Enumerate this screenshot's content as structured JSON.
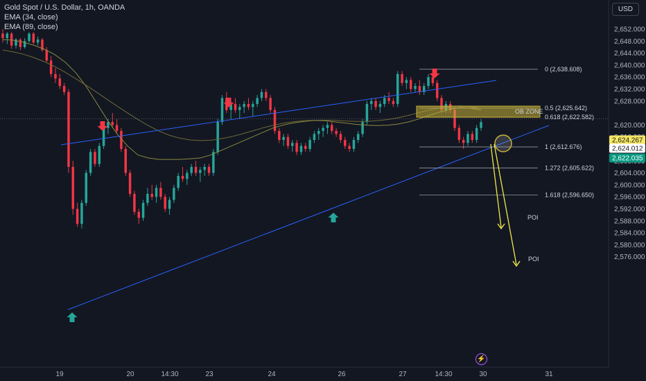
{
  "header": {
    "title": "Gold Spot / U.S. Dollar, 1h, OANDA",
    "indicators": [
      "EMA (34, close)",
      "EMA (89, close)"
    ],
    "currency_button": "USD"
  },
  "colors": {
    "background": "#131722",
    "bull": "#26a69a",
    "bear": "#f23645",
    "ema34": "#8a8a3e",
    "ema89": "#6f6a38",
    "trendline": "#2962ff",
    "projection": "#f3e94b",
    "ob_zone": "#c9b236"
  },
  "chart_data": {
    "type": "candlestick",
    "symbol": "XAUUSD",
    "timeframe": "1h",
    "ylim": [
      2574,
      2654
    ],
    "y_ticks": [
      "2,652.000",
      "2,648.000",
      "2,644.000",
      "2,640.000",
      "2,636.000",
      "2,632.000",
      "2,628.000",
      "2,620.000",
      "2,616.000",
      "2,612.000",
      "2,608.000",
      "2,604.000",
      "2,600.000",
      "2,596.000",
      "2,592.000",
      "2,588.000",
      "2,584.000",
      "2,580.000",
      "2,576.000"
    ],
    "x_ticks": [
      "19",
      "20",
      "14:30",
      "23",
      "24",
      "26",
      "27",
      "14:30",
      "30",
      "31"
    ],
    "price_labels": [
      {
        "value": "2,624.267",
        "style": "yellow"
      },
      {
        "value": "2,624.012",
        "style": "white"
      },
      {
        "value": "2,622.035",
        "style": "green"
      }
    ],
    "fibonacci": [
      {
        "label": "0 (2,638.608)",
        "price": 2638.608
      },
      {
        "label": "0.5 (2,625.642)",
        "price": 2625.642
      },
      {
        "label": "0.618 (2,622.582)",
        "price": 2622.582
      },
      {
        "label": "1 (2,612.676)",
        "price": 2612.676
      },
      {
        "label": "1.272 (2,605.622)",
        "price": 2605.622
      },
      {
        "label": "1.618 (2,596.650)",
        "price": 2596.65
      }
    ],
    "zone_label": "OB ZONE",
    "zone_range": [
      2622.6,
      2626.3
    ],
    "poi_labels": [
      "POI",
      "POI"
    ],
    "candles": [
      [
        2650.5,
        2652,
        2647.5,
        2649
      ],
      [
        2649,
        2651,
        2647,
        2650.5
      ],
      [
        2650.5,
        2651,
        2645.5,
        2646.5
      ],
      [
        2646.5,
        2649,
        2645.5,
        2648.5
      ],
      [
        2648.5,
        2649,
        2645,
        2646
      ],
      [
        2646,
        2649,
        2645.5,
        2648
      ],
      [
        2648,
        2651,
        2647.5,
        2650.5
      ],
      [
        2650.5,
        2651,
        2647,
        2647.5
      ],
      [
        2647.5,
        2649.5,
        2646.5,
        2648.5
      ],
      [
        2648.5,
        2649,
        2644.5,
        2645
      ],
      [
        2645,
        2646,
        2641,
        2641.5
      ],
      [
        2641.5,
        2643,
        2636,
        2637
      ],
      [
        2637,
        2639,
        2634,
        2635.5
      ],
      [
        2635.5,
        2637,
        2632,
        2633
      ],
      [
        2633,
        2634,
        2630,
        2631
      ],
      [
        2631,
        2632,
        2604,
        2606
      ],
      [
        2606,
        2608,
        2590,
        2592
      ],
      [
        2592,
        2594,
        2586,
        2587
      ],
      [
        2587,
        2595,
        2585.5,
        2594
      ],
      [
        2594,
        2605,
        2593,
        2604
      ],
      [
        2604,
        2612,
        2603,
        2611
      ],
      [
        2611,
        2612,
        2606,
        2607
      ],
      [
        2607,
        2614,
        2606,
        2613
      ],
      [
        2613,
        2620,
        2612,
        2619
      ],
      [
        2619,
        2622,
        2617,
        2621
      ],
      [
        2621,
        2624,
        2619,
        2620
      ],
      [
        2620,
        2622,
        2617,
        2618
      ],
      [
        2618,
        2619,
        2611,
        2612
      ],
      [
        2612,
        2613,
        2603,
        2604
      ],
      [
        2604,
        2605,
        2596,
        2597
      ],
      [
        2597,
        2598,
        2590,
        2591
      ],
      [
        2591,
        2592,
        2587,
        2589
      ],
      [
        2589,
        2595,
        2588,
        2594
      ],
      [
        2594,
        2599,
        2593,
        2597
      ],
      [
        2597,
        2600,
        2595,
        2596
      ],
      [
        2596,
        2600,
        2594,
        2599
      ],
      [
        2599,
        2601,
        2595,
        2596
      ],
      [
        2596,
        2597,
        2591,
        2592
      ],
      [
        2592,
        2596,
        2590,
        2595
      ],
      [
        2595,
        2600,
        2594,
        2599
      ],
      [
        2599,
        2604,
        2598,
        2603
      ],
      [
        2603,
        2606,
        2601,
        2602
      ],
      [
        2602,
        2605,
        2600,
        2604
      ],
      [
        2604,
        2607,
        2603,
        2606
      ],
      [
        2606,
        2608,
        2603,
        2604
      ],
      [
        2604,
        2606,
        2601,
        2605
      ],
      [
        2605,
        2607,
        2603,
        2606
      ],
      [
        2606,
        2607,
        2603,
        2604
      ],
      [
        2604,
        2612,
        2603,
        2611
      ],
      [
        2611,
        2622,
        2610,
        2621
      ],
      [
        2621,
        2630,
        2620,
        2629
      ],
      [
        2629,
        2631,
        2624,
        2625
      ],
      [
        2625,
        2628,
        2622,
        2627
      ],
      [
        2627,
        2629,
        2624,
        2625
      ],
      [
        2625,
        2627,
        2622,
        2626
      ],
      [
        2626,
        2628,
        2624,
        2627
      ],
      [
        2627,
        2629,
        2625,
        2626
      ],
      [
        2626,
        2628,
        2623,
        2627
      ],
      [
        2627,
        2630,
        2626,
        2629
      ],
      [
        2629,
        2632,
        2628,
        2631
      ],
      [
        2631,
        2632,
        2628,
        2629
      ],
      [
        2629,
        2630,
        2624,
        2625
      ],
      [
        2625,
        2626,
        2617,
        2618
      ],
      [
        2618,
        2619,
        2614,
        2615
      ],
      [
        2615,
        2617,
        2613,
        2616
      ],
      [
        2616,
        2617,
        2612,
        2613
      ],
      [
        2613,
        2615,
        2611,
        2614
      ],
      [
        2614,
        2615,
        2610,
        2611
      ],
      [
        2611,
        2614,
        2610,
        2613
      ],
      [
        2613,
        2614,
        2611,
        2612
      ],
      [
        2612,
        2616,
        2611,
        2615
      ],
      [
        2615,
        2618,
        2614,
        2617
      ],
      [
        2617,
        2619,
        2615,
        2618
      ],
      [
        2618,
        2620,
        2616,
        2619
      ],
      [
        2619,
        2621,
        2617,
        2620
      ],
      [
        2620,
        2621,
        2617,
        2618
      ],
      [
        2618,
        2619,
        2616,
        2617
      ],
      [
        2617,
        2618,
        2614,
        2615
      ],
      [
        2615,
        2616,
        2612,
        2613
      ],
      [
        2613,
        2614,
        2611,
        2612
      ],
      [
        2612,
        2616,
        2611,
        2615
      ],
      [
        2615,
        2618,
        2614,
        2617
      ],
      [
        2617,
        2622,
        2616,
        2621
      ],
      [
        2621,
        2628,
        2620,
        2627
      ],
      [
        2627,
        2629,
        2625,
        2628
      ],
      [
        2628,
        2629,
        2625,
        2626
      ],
      [
        2626,
        2628,
        2624,
        2627
      ],
      [
        2627,
        2630,
        2626,
        2629
      ],
      [
        2629,
        2631,
        2627,
        2628
      ],
      [
        2628,
        2629,
        2626,
        2627
      ],
      [
        2627,
        2638,
        2626,
        2637
      ],
      [
        2637,
        2638,
        2633,
        2634
      ],
      [
        2634,
        2636,
        2632,
        2635
      ],
      [
        2635,
        2636,
        2631,
        2632
      ],
      [
        2632,
        2634,
        2631,
        2633
      ],
      [
        2633,
        2635,
        2630,
        2631
      ],
      [
        2631,
        2634,
        2630,
        2633
      ],
      [
        2633,
        2637,
        2632,
        2636
      ],
      [
        2636,
        2638,
        2633,
        2634
      ],
      [
        2634,
        2635,
        2628,
        2629
      ],
      [
        2629,
        2630,
        2624,
        2625
      ],
      [
        2625,
        2628,
        2624,
        2627
      ],
      [
        2627,
        2628,
        2624,
        2625
      ],
      [
        2625,
        2626,
        2618,
        2619
      ],
      [
        2619,
        2620,
        2614,
        2615
      ],
      [
        2615,
        2616,
        2612,
        2614
      ],
      [
        2614,
        2618,
        2613,
        2617
      ],
      [
        2617,
        2618,
        2614,
        2615
      ],
      [
        2615,
        2620,
        2614,
        2619
      ],
      [
        2619,
        2622,
        2618,
        2621
      ]
    ],
    "ema34": [
      2648.5,
      2648.3,
      2647.6,
      2646.6,
      2645.3,
      2643.5,
      2641,
      2637.5,
      2633,
      2627.5,
      2622,
      2617,
      2613,
      2610,
      2609,
      2608.5,
      2608.5,
      2608.5,
      2608.7,
      2609,
      2610,
      2611.5,
      2613,
      2614.5,
      2616,
      2617.5,
      2619,
      2620,
      2620.7,
      2621.2,
      2621.5,
      2621.4,
      2621,
      2620.6,
      2620.2,
      2619.9,
      2619.8,
      2619.9,
      2620.3,
      2621,
      2622,
      2623.2,
      2624.3,
      2625.2,
      2625.8,
      2625.6,
      2625
    ],
    "ema89": [
      2645,
      2644.4,
      2643.6,
      2642.5,
      2641.1,
      2639.5,
      2637.6,
      2635.5,
      2633.3,
      2631,
      2628.6,
      2626.3,
      2624,
      2621.8,
      2619.8,
      2618,
      2616.6,
      2615.6,
      2615,
      2614.8,
      2614.9,
      2615.4,
      2616.1,
      2617,
      2618,
      2619,
      2619.9,
      2620.6,
      2621.1,
      2621.4,
      2621.6,
      2621.6,
      2621.5,
      2621.3,
      2621.2,
      2621.2,
      2621.4,
      2621.8,
      2622.4,
      2623.2,
      2624.1,
      2625,
      2625.7,
      2626.2,
      2626.4,
      2626.1,
      2625.6
    ]
  }
}
